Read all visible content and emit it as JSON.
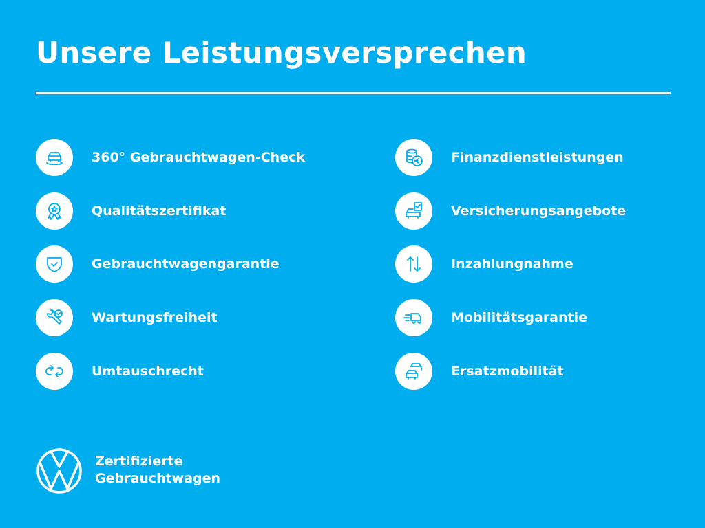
{
  "title": "Unsere Leistungsversprechen",
  "left_items": [
    {
      "label": "360° Gebrauchtwagen-Check",
      "icon": "car-360-icon"
    },
    {
      "label": "Qualitätszertifikat",
      "icon": "award-badge-icon"
    },
    {
      "label": "Gebrauchtwagengarantie",
      "icon": "shield-check-icon"
    },
    {
      "label": "Wartungsfreiheit",
      "icon": "wrench-check-icon"
    },
    {
      "label": "Umtauschrecht",
      "icon": "exchange-arrows-icon"
    }
  ],
  "right_items": [
    {
      "label": "Finanzdienstleistungen",
      "icon": "coins-euro-icon"
    },
    {
      "label": "Versicherungsangebote",
      "icon": "car-document-icon"
    },
    {
      "label": "Inzahlungnahme",
      "icon": "swap-up-down-icon"
    },
    {
      "label": "Mobilitätsgarantie",
      "icon": "tow-truck-icon"
    },
    {
      "label": "Ersatzmobilität",
      "icon": "replacement-cars-icon"
    }
  ],
  "brand": {
    "line1": "Zertifizierte",
    "line2": "Gebrauchtwagen",
    "logo": "vw-logo"
  },
  "colors": {
    "background": "#00aeef",
    "foreground": "#ffffff"
  }
}
